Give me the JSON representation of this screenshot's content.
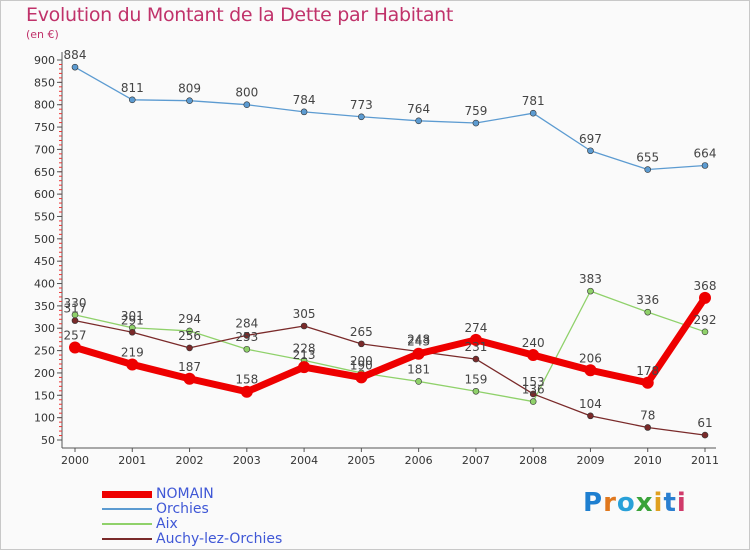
{
  "title": "Evolution du Montant de la Dette par Habitant",
  "unit_label": "(en €)",
  "brand": "Proxiti",
  "chart_data": {
    "type": "line",
    "title": "Evolution du Montant de la Dette par Habitant",
    "subtitle": "(en €)",
    "x": [
      "2000",
      "2001",
      "2002",
      "2003",
      "2004",
      "2005",
      "2006",
      "2007",
      "2008",
      "2009",
      "2010",
      "2011"
    ],
    "ylim": [
      50,
      900
    ],
    "yticks": [
      50,
      100,
      150,
      200,
      250,
      300,
      350,
      400,
      450,
      500,
      550,
      600,
      650,
      700,
      750,
      800,
      850,
      900
    ],
    "grid": false,
    "legend_position": "bottom-left",
    "series": [
      {
        "name": "NOMAIN",
        "color": "#ee0000",
        "values": [
          257,
          219,
          187,
          158,
          213,
          190,
          243,
          274,
          240,
          206,
          178,
          368
        ],
        "labels": [
          "257",
          "219",
          "187",
          "158",
          "213",
          "190",
          "243",
          "274",
          "240",
          "206",
          "178",
          "368"
        ]
      },
      {
        "name": "Orchies",
        "color": "#5c9bd1",
        "values": [
          884,
          811,
          809,
          800,
          784,
          773,
          764,
          759,
          781,
          697,
          655,
          664
        ],
        "labels": [
          "884",
          "811",
          "809",
          "800",
          "784",
          "773",
          "764",
          "759",
          "781",
          "697",
          "655",
          "664"
        ]
      },
      {
        "name": "Aix",
        "color": "#8fd16a",
        "values": [
          330,
          301,
          294,
          253,
          228,
          200,
          181,
          159,
          136,
          383,
          336,
          292
        ],
        "labels": [
          "330",
          "301",
          "294",
          "253",
          "228",
          "200",
          "181",
          "159",
          "136",
          "383",
          "336",
          "292"
        ]
      },
      {
        "name": "Auchy-lez-Orchies",
        "color": "#7a2a2a",
        "values": [
          317,
          291,
          256,
          284,
          305,
          265,
          248,
          231,
          153,
          104,
          78,
          61
        ],
        "labels": [
          "317",
          "291",
          "256",
          "284",
          "305",
          "265",
          "248",
          "231",
          "153",
          "104",
          "78",
          "61"
        ]
      }
    ]
  }
}
